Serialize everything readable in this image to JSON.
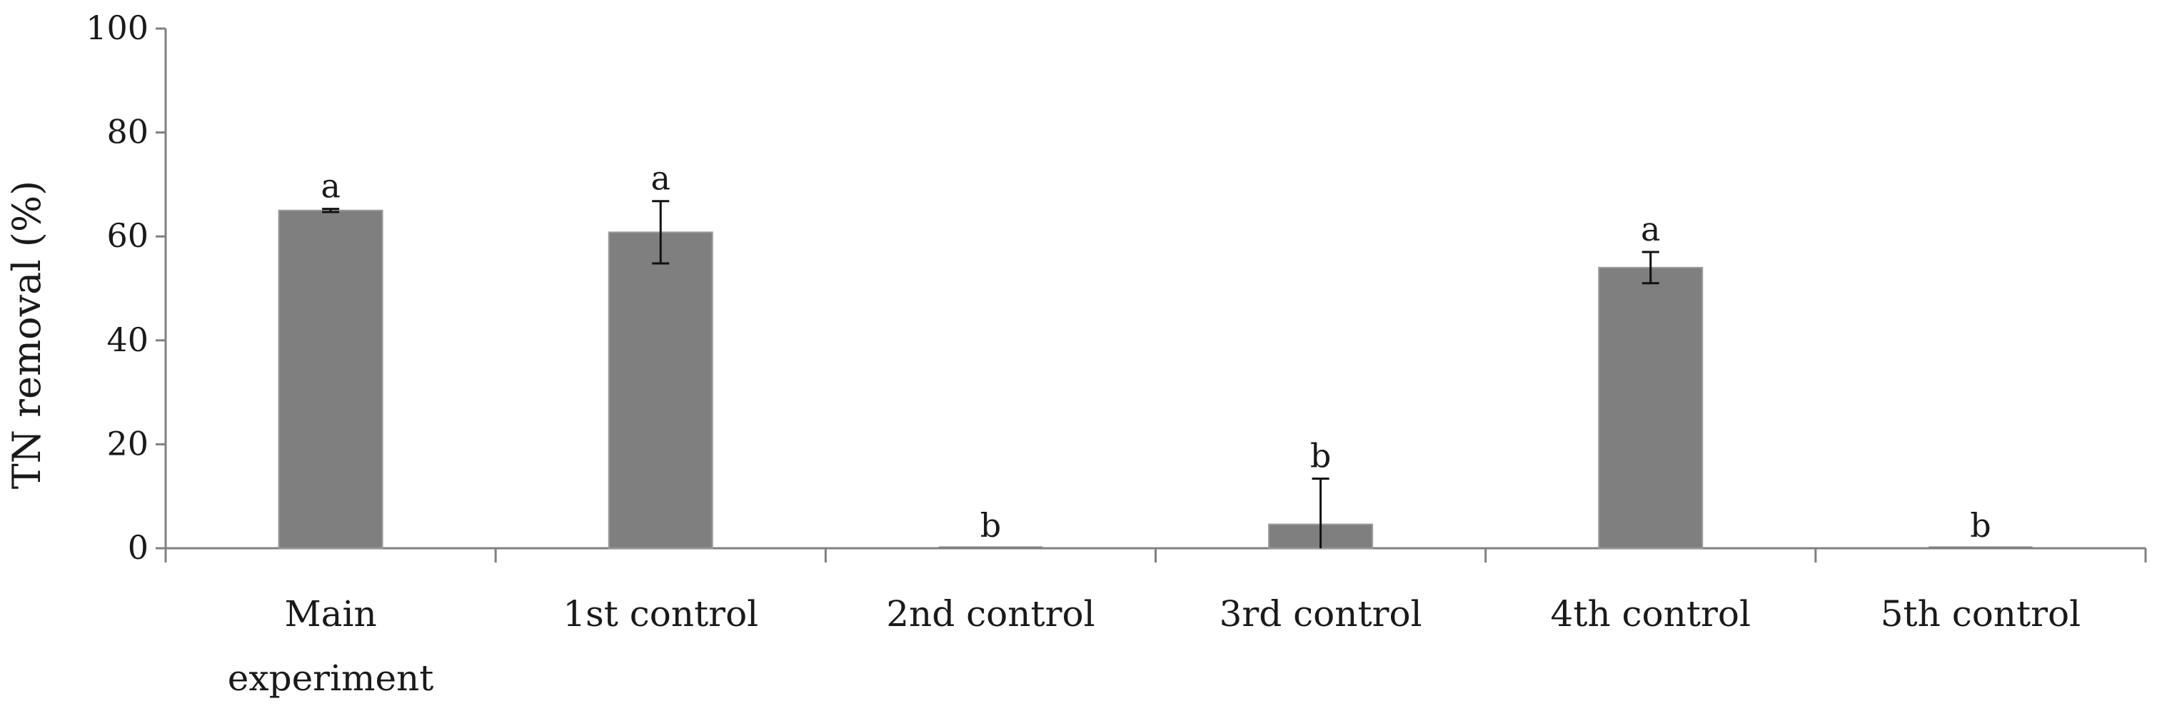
{
  "chart_data": {
    "type": "bar",
    "title": "",
    "xlabel": "",
    "ylabel": "TN removal (%)",
    "ylim": [
      0,
      100
    ],
    "yticks": [
      "0",
      "20",
      "40",
      "60",
      "80",
      "100"
    ],
    "grid": false,
    "categories": [
      [
        "Main",
        "experiment"
      ],
      [
        "1st control"
      ],
      [
        "2nd control"
      ],
      [
        "3rd control"
      ],
      [
        "4th control"
      ],
      [
        "5th control"
      ]
    ],
    "values": [
      65,
      60.8,
      0,
      4.6,
      54,
      0
    ],
    "error_low": [
      0.3,
      6.0,
      0,
      4.6,
      3.0,
      0
    ],
    "error_high": [
      0.3,
      6.0,
      0,
      8.8,
      3.0,
      0
    ],
    "significance": [
      "a",
      "a",
      "b",
      "b",
      "a",
      "b"
    ],
    "bar_color": "#7f7f7f",
    "axis_color": "#808080"
  }
}
